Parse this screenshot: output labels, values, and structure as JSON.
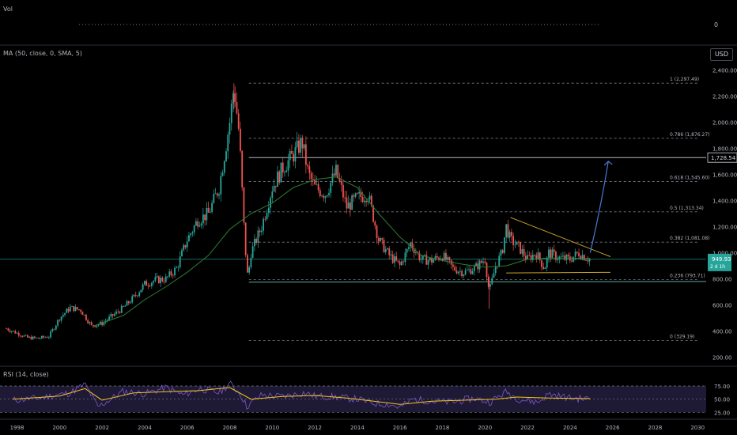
{
  "panes": {
    "volume": {
      "label": "Vol",
      "axis_value": "0"
    },
    "price": {
      "indicator_label": "MA (50, close, 0, SMA, 5)",
      "currency": "USD"
    },
    "rsi": {
      "label": "RSI (14, close)"
    }
  },
  "price_axis": {
    "ticks": [
      "2,400.00",
      "2,200.00",
      "2,000.00",
      "1,800.00",
      "1,600.00",
      "1,400.00",
      "1,200.00",
      "1,000.00",
      "800.00",
      "600.00",
      "400.00",
      "200.00"
    ],
    "ticks_values": [
      2400,
      2200,
      2000,
      1800,
      1600,
      1400,
      1200,
      1000,
      800,
      600,
      400,
      200
    ],
    "target_label": "1,728.54",
    "target_value": 1728.54,
    "last_price_label": "949.93",
    "last_price_value": 949.93,
    "countdown_label": "2 d 1h"
  },
  "rsi_axis": {
    "ticks": [
      "75.00",
      "50.00",
      "25.00"
    ],
    "ticks_values": [
      75,
      50,
      25
    ]
  },
  "time_axis": {
    "ticks": [
      "1998",
      "2000",
      "2002",
      "2004",
      "2006",
      "2008",
      "2010",
      "2012",
      "2014",
      "2016",
      "2018",
      "2020",
      "2022",
      "2024",
      "2026",
      "2028",
      "2030"
    ],
    "ticks_years": [
      1998,
      2000,
      2002,
      2004,
      2006,
      2008,
      2010,
      2012,
      2014,
      2016,
      2018,
      2020,
      2022,
      2024,
      2026,
      2028,
      2030
    ]
  },
  "fibonacci": [
    {
      "label": "1 (2,297.49)",
      "value": 2297.49
    },
    {
      "label": "0.786 (1,876.27)",
      "value": 1876.27
    },
    {
      "label": "0.618 (1,545.60)",
      "value": 1545.6
    },
    {
      "label": "0.5 (1,313.34)",
      "value": 1313.34
    },
    {
      "label": "0.382 (1,081.08)",
      "value": 1081.08
    },
    {
      "label": "0.236 (793.71)",
      "value": 793.71
    },
    {
      "label": "0 (329.19)",
      "value": 329.19
    }
  ],
  "colors": {
    "up": "#26a69a",
    "down": "#ef5350",
    "ma": "#2e7d32",
    "fib": "#787b86",
    "rsi": "#7e57c2",
    "rsi_ma": "#f5c518",
    "rsi_band": "#1e1a36",
    "triangle": "#c9a227",
    "arrow": "#4a78d6",
    "support": "#5fa8a0",
    "last_price": "#26a69a"
  },
  "chart_data": {
    "type": "candlestick",
    "x_range": [
      1997.2,
      2030.4
    ],
    "y_range_price": [
      150,
      2450
    ],
    "rsi_range": [
      15,
      90
    ],
    "price_path": [
      [
        1997.5,
        420
      ],
      [
        1998.0,
        385
      ],
      [
        1998.5,
        350
      ],
      [
        1999.0,
        345
      ],
      [
        1999.5,
        360
      ],
      [
        2000.0,
        500
      ],
      [
        2000.5,
        580
      ],
      [
        2001.0,
        560
      ],
      [
        2001.5,
        440
      ],
      [
        2002.0,
        460
      ],
      [
        2002.5,
        520
      ],
      [
        2003.0,
        580
      ],
      [
        2003.5,
        660
      ],
      [
        2004.0,
        760
      ],
      [
        2004.5,
        790
      ],
      [
        2005.0,
        800
      ],
      [
        2005.5,
        880
      ],
      [
        2006.0,
        1100
      ],
      [
        2006.5,
        1250
      ],
      [
        2007.0,
        1300
      ],
      [
        2007.5,
        1500
      ],
      [
        2008.0,
        2000
      ],
      [
        2008.2,
        2270
      ],
      [
        2008.45,
        1900
      ],
      [
        2008.7,
        1100
      ],
      [
        2008.85,
        800
      ],
      [
        2009.0,
        1000
      ],
      [
        2009.5,
        1200
      ],
      [
        2010.0,
        1500
      ],
      [
        2010.5,
        1650
      ],
      [
        2011.0,
        1750
      ],
      [
        2011.4,
        1850
      ],
      [
        2011.7,
        1600
      ],
      [
        2012.0,
        1500
      ],
      [
        2012.5,
        1450
      ],
      [
        2013.0,
        1620
      ],
      [
        2013.5,
        1350
      ],
      [
        2014.0,
        1420
      ],
      [
        2014.5,
        1450
      ],
      [
        2015.0,
        1100
      ],
      [
        2015.5,
        980
      ],
      [
        2016.0,
        900
      ],
      [
        2016.5,
        1070
      ],
      [
        2017.0,
        950
      ],
      [
        2017.5,
        940
      ],
      [
        2018.0,
        980
      ],
      [
        2018.5,
        880
      ],
      [
        2019.0,
        850
      ],
      [
        2019.5,
        880
      ],
      [
        2020.0,
        950
      ],
      [
        2020.2,
        700
      ],
      [
        2020.5,
        900
      ],
      [
        2020.8,
        1000
      ],
      [
        2021.0,
        1200
      ],
      [
        2021.2,
        1100
      ],
      [
        2021.6,
        1040
      ],
      [
        2022.0,
        950
      ],
      [
        2022.4,
        1000
      ],
      [
        2022.8,
        880
      ],
      [
        2023.0,
        1000
      ],
      [
        2023.5,
        960
      ],
      [
        2024.0,
        950
      ],
      [
        2024.4,
        1000
      ],
      [
        2024.8,
        960
      ],
      [
        2024.95,
        949.93
      ]
    ],
    "ma_path": [
      [
        2001.6,
        440
      ],
      [
        2003.0,
        520
      ],
      [
        2004.0,
        640
      ],
      [
        2005.0,
        740
      ],
      [
        2006.0,
        850
      ],
      [
        2007.0,
        980
      ],
      [
        2008.0,
        1180
      ],
      [
        2009.0,
        1300
      ],
      [
        2010.0,
        1380
      ],
      [
        2011.0,
        1500
      ],
      [
        2012.0,
        1560
      ],
      [
        2013.0,
        1580
      ],
      [
        2014.0,
        1500
      ],
      [
        2015.0,
        1300
      ],
      [
        2016.0,
        1120
      ],
      [
        2017.0,
        980
      ],
      [
        2018.0,
        940
      ],
      [
        2019.0,
        910
      ],
      [
        2020.0,
        890
      ],
      [
        2021.0,
        900
      ],
      [
        2022.0,
        950
      ],
      [
        2023.0,
        960
      ],
      [
        2024.0,
        960
      ],
      [
        2024.95,
        955
      ]
    ],
    "rsi_path": [
      [
        1997.8,
        48
      ],
      [
        1999.0,
        52
      ],
      [
        2000.5,
        62
      ],
      [
        2001.2,
        78
      ],
      [
        2001.8,
        35
      ],
      [
        2003.0,
        65
      ],
      [
        2004.0,
        60
      ],
      [
        2005.0,
        72
      ],
      [
        2005.8,
        58
      ],
      [
        2006.6,
        70
      ],
      [
        2007.5,
        62
      ],
      [
        2008.0,
        80
      ],
      [
        2008.5,
        60
      ],
      [
        2008.8,
        36
      ],
      [
        2009.5,
        58
      ],
      [
        2010.5,
        55
      ],
      [
        2011.5,
        62
      ],
      [
        2012.0,
        56
      ],
      [
        2013.0,
        54
      ],
      [
        2014.0,
        50
      ],
      [
        2014.8,
        42
      ],
      [
        2015.5,
        40
      ],
      [
        2016.0,
        34
      ],
      [
        2016.6,
        50
      ],
      [
        2017.5,
        46
      ],
      [
        2018.5,
        44
      ],
      [
        2019.5,
        52
      ],
      [
        2020.2,
        44
      ],
      [
        2021.0,
        64
      ],
      [
        2021.6,
        50
      ],
      [
        2022.5,
        44
      ],
      [
        2023.0,
        60
      ],
      [
        2024.0,
        52
      ],
      [
        2024.95,
        50
      ]
    ],
    "rsi_ma_path": [
      [
        1997.8,
        50
      ],
      [
        2000.0,
        56
      ],
      [
        2001.2,
        70
      ],
      [
        2002.0,
        48
      ],
      [
        2003.5,
        62
      ],
      [
        2005.0,
        64
      ],
      [
        2006.5,
        66
      ],
      [
        2008.0,
        72
      ],
      [
        2009.0,
        50
      ],
      [
        2010.5,
        55
      ],
      [
        2012.0,
        57
      ],
      [
        2013.5,
        52
      ],
      [
        2015.0,
        45
      ],
      [
        2016.0,
        40
      ],
      [
        2017.5,
        46
      ],
      [
        2019.0,
        48
      ],
      [
        2020.5,
        50
      ],
      [
        2021.5,
        54
      ],
      [
        2023.0,
        52
      ],
      [
        2024.95,
        51
      ]
    ],
    "annotations": {
      "triangle_top": [
        [
          2021.2,
          1270
        ],
        [
          2025.9,
          970
        ]
      ],
      "triangle_bottom": [
        [
          2021.0,
          845
        ],
        [
          2025.9,
          850
        ]
      ],
      "support_line": [
        [
          2008.9,
          775
        ],
        [
          2030.4,
          780
        ]
      ],
      "target_line": [
        [
          2008.9,
          1728.54
        ],
        [
          2030.4,
          1728.54
        ]
      ],
      "projection_arrow": [
        [
          2024.95,
          1000
        ],
        [
          2025.8,
          1700
        ]
      ]
    }
  }
}
